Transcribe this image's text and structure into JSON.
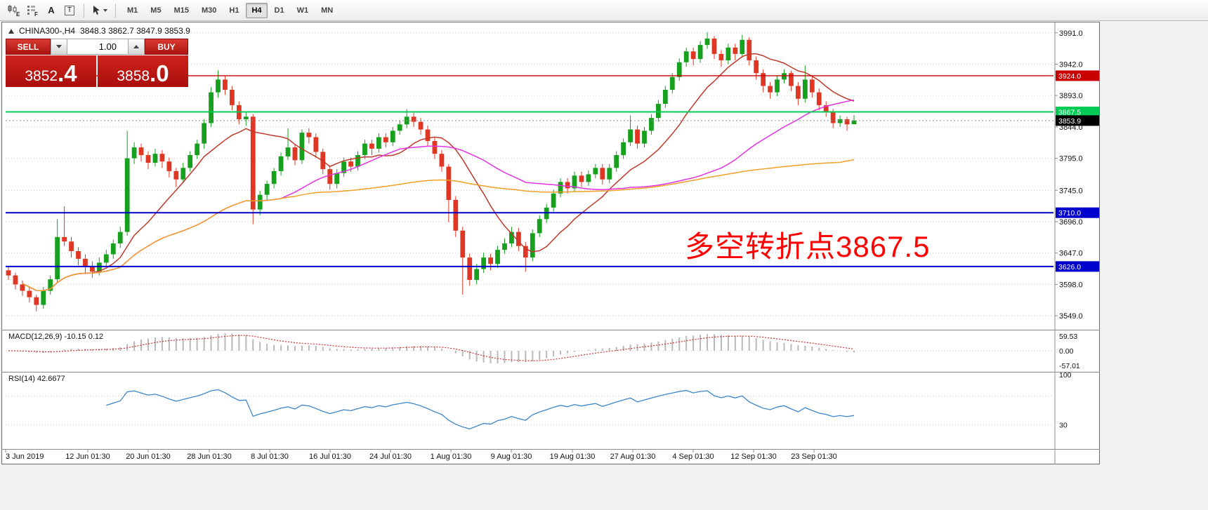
{
  "toolbar": {
    "icon_badges": {
      "charts": "E",
      "list": "F"
    },
    "text_tool_label": "A",
    "textbox_tool_label": "T",
    "timeframes": [
      {
        "label": "M1",
        "active": false
      },
      {
        "label": "M5",
        "active": false
      },
      {
        "label": "M15",
        "active": false
      },
      {
        "label": "M30",
        "active": false
      },
      {
        "label": "H1",
        "active": false
      },
      {
        "label": "H4",
        "active": true
      },
      {
        "label": "D1",
        "active": false
      },
      {
        "label": "W1",
        "active": false
      },
      {
        "label": "MN",
        "active": false
      }
    ]
  },
  "trade": {
    "sell_label": "SELL",
    "buy_label": "BUY",
    "volume": "1.00",
    "sell_price_main": "3852",
    "sell_price_frac": ".4",
    "buy_price_main": "3858",
    "buy_price_frac": ".0"
  },
  "chart": {
    "symbol_period": "CHINA300-,H4",
    "ohlc_values": "3848.3 3862.7 3847.9 3853.9",
    "annotation_text": "多空转折点3867.5",
    "annotation_color": "#ff0000"
  },
  "indicators": {
    "macd": {
      "label": "MACD(12,26,9) -10.15 0.12",
      "fast": 12,
      "slow": 26,
      "signal": 9,
      "histogram_color": "#b9b9b9",
      "signal_color": "#cc3333"
    },
    "rsi": {
      "label": "RSI(14) 42.6677",
      "period": 14,
      "color": "#3c86c8",
      "levels": [
        70,
        30
      ]
    }
  },
  "axes": {
    "y_labels": [
      "3991.0",
      "3942.0",
      "3893.0",
      "3844.0",
      "3795.0",
      "3745.0",
      "3696.0",
      "3647.0",
      "3598.0",
      "3549.0"
    ],
    "x_labels": [
      "3 Jun 2019",
      "12 Jun 01:30",
      "20 Jun 01:30",
      "28 Jun 01:30",
      "8 Jul 01:30",
      "16 Jul 01:30",
      "24 Jul 01:30",
      "1 Aug 01:30",
      "9 Aug 01:30",
      "19 Aug 01:30",
      "27 Aug 01:30",
      "4 Sep 01:30",
      "12 Sep 01:30",
      "23 Sep 01:30"
    ],
    "macd_labels": [
      "59.53",
      "0.00",
      "-57.01"
    ],
    "rsi_labels": [
      {
        "value": 100,
        "label": "100"
      },
      {
        "value": 30,
        "label": "30"
      }
    ]
  },
  "chart_data": {
    "type": "candlestick",
    "symbol": "CHINA300-",
    "timeframe": "H4",
    "title": "CHINA300-,H4 3848.3 3862.7 3847.9 3853.9",
    "price_min": 3536,
    "price_max": 4005,
    "up_color": "#16a01e",
    "down_color": "#e03724",
    "ohlc": [
      [
        3620,
        3626,
        3605,
        3612
      ],
      [
        3612,
        3616,
        3590,
        3598
      ],
      [
        3598,
        3604,
        3580,
        3588
      ],
      [
        3588,
        3594,
        3570,
        3578
      ],
      [
        3578,
        3582,
        3556,
        3566
      ],
      [
        3566,
        3594,
        3560,
        3588
      ],
      [
        3588,
        3612,
        3582,
        3606
      ],
      [
        3606,
        3700,
        3600,
        3672
      ],
      [
        3672,
        3720,
        3658,
        3665
      ],
      [
        3665,
        3672,
        3640,
        3650
      ],
      [
        3650,
        3656,
        3628,
        3638
      ],
      [
        3638,
        3645,
        3614,
        3625
      ],
      [
        3625,
        3634,
        3608,
        3618
      ],
      [
        3618,
        3640,
        3612,
        3632
      ],
      [
        3632,
        3652,
        3626,
        3645
      ],
      [
        3645,
        3668,
        3638,
        3662
      ],
      [
        3662,
        3688,
        3655,
        3680
      ],
      [
        3680,
        3838,
        3674,
        3795
      ],
      [
        3795,
        3820,
        3786,
        3812
      ],
      [
        3812,
        3818,
        3790,
        3800
      ],
      [
        3800,
        3806,
        3778,
        3788
      ],
      [
        3788,
        3810,
        3782,
        3802
      ],
      [
        3802,
        3808,
        3780,
        3790
      ],
      [
        3790,
        3796,
        3765,
        3775
      ],
      [
        3775,
        3780,
        3750,
        3762
      ],
      [
        3762,
        3788,
        3756,
        3780
      ],
      [
        3780,
        3806,
        3774,
        3800
      ],
      [
        3800,
        3824,
        3794,
        3818
      ],
      [
        3818,
        3856,
        3810,
        3850
      ],
      [
        3850,
        3906,
        3844,
        3898
      ],
      [
        3898,
        3932,
        3890,
        3918
      ],
      [
        3918,
        3924,
        3894,
        3902
      ],
      [
        3902,
        3908,
        3870,
        3878
      ],
      [
        3878,
        3884,
        3848,
        3856
      ],
      [
        3856,
        3868,
        3846,
        3860
      ],
      [
        3860,
        3864,
        3692,
        3715
      ],
      [
        3715,
        3744,
        3706,
        3738
      ],
      [
        3738,
        3760,
        3730,
        3755
      ],
      [
        3755,
        3780,
        3748,
        3775
      ],
      [
        3775,
        3804,
        3768,
        3798
      ],
      [
        3798,
        3842,
        3792,
        3812
      ],
      [
        3812,
        3816,
        3784,
        3792
      ],
      [
        3792,
        3840,
        3786,
        3835
      ],
      [
        3835,
        3842,
        3818,
        3828
      ],
      [
        3828,
        3834,
        3796,
        3805
      ],
      [
        3805,
        3810,
        3770,
        3778
      ],
      [
        3778,
        3784,
        3746,
        3755
      ],
      [
        3755,
        3778,
        3748,
        3772
      ],
      [
        3772,
        3796,
        3766,
        3790
      ],
      [
        3790,
        3796,
        3774,
        3782
      ],
      [
        3782,
        3806,
        3776,
        3800
      ],
      [
        3800,
        3824,
        3794,
        3818
      ],
      [
        3818,
        3824,
        3800,
        3810
      ],
      [
        3810,
        3834,
        3804,
        3828
      ],
      [
        3828,
        3834,
        3812,
        3820
      ],
      [
        3820,
        3844,
        3814,
        3838
      ],
      [
        3838,
        3854,
        3832,
        3848
      ],
      [
        3848,
        3872,
        3842,
        3860
      ],
      [
        3860,
        3866,
        3844,
        3852
      ],
      [
        3852,
        3858,
        3832,
        3840
      ],
      [
        3840,
        3846,
        3814,
        3822
      ],
      [
        3822,
        3828,
        3794,
        3802
      ],
      [
        3802,
        3808,
        3774,
        3782
      ],
      [
        3782,
        3786,
        3695,
        3730
      ],
      [
        3730,
        3736,
        3672,
        3682
      ],
      [
        3682,
        3688,
        3582,
        3640
      ],
      [
        3640,
        3646,
        3596,
        3605
      ],
      [
        3605,
        3630,
        3598,
        3622
      ],
      [
        3622,
        3648,
        3616,
        3640
      ],
      [
        3640,
        3646,
        3620,
        3630
      ],
      [
        3630,
        3658,
        3624,
        3652
      ],
      [
        3652,
        3670,
        3646,
        3662
      ],
      [
        3662,
        3688,
        3656,
        3680
      ],
      [
        3680,
        3686,
        3650,
        3658
      ],
      [
        3658,
        3664,
        3618,
        3640
      ],
      [
        3640,
        3684,
        3634,
        3678
      ],
      [
        3678,
        3706,
        3672,
        3700
      ],
      [
        3700,
        3724,
        3694,
        3718
      ],
      [
        3718,
        3746,
        3712,
        3740
      ],
      [
        3740,
        3764,
        3734,
        3758
      ],
      [
        3758,
        3764,
        3740,
        3748
      ],
      [
        3748,
        3774,
        3742,
        3768
      ],
      [
        3768,
        3774,
        3750,
        3758
      ],
      [
        3758,
        3776,
        3752,
        3770
      ],
      [
        3770,
        3786,
        3764,
        3780
      ],
      [
        3780,
        3786,
        3754,
        3762
      ],
      [
        3762,
        3786,
        3756,
        3780
      ],
      [
        3780,
        3806,
        3774,
        3800
      ],
      [
        3800,
        3826,
        3794,
        3820
      ],
      [
        3820,
        3862,
        3814,
        3840
      ],
      [
        3840,
        3846,
        3810,
        3818
      ],
      [
        3818,
        3844,
        3812,
        3838
      ],
      [
        3838,
        3864,
        3832,
        3858
      ],
      [
        3858,
        3886,
        3852,
        3880
      ],
      [
        3880,
        3908,
        3874,
        3902
      ],
      [
        3902,
        3928,
        3896,
        3922
      ],
      [
        3922,
        3951,
        3916,
        3945
      ],
      [
        3945,
        3968,
        3938,
        3962
      ],
      [
        3962,
        3968,
        3940,
        3950
      ],
      [
        3950,
        3978,
        3944,
        3972
      ],
      [
        3972,
        3992,
        3966,
        3982
      ],
      [
        3982,
        3986,
        3950,
        3958
      ],
      [
        3958,
        3964,
        3938,
        3948
      ],
      [
        3948,
        3974,
        3942,
        3968
      ],
      [
        3968,
        3974,
        3948,
        3958
      ],
      [
        3958,
        3988,
        3952,
        3980
      ],
      [
        3980,
        3984,
        3940,
        3948
      ],
      [
        3948,
        3954,
        3918,
        3928
      ],
      [
        3928,
        3934,
        3898,
        3908
      ],
      [
        3908,
        3914,
        3888,
        3898
      ],
      [
        3898,
        3924,
        3892,
        3918
      ],
      [
        3918,
        3934,
        3912,
        3928
      ],
      [
        3928,
        3932,
        3900,
        3908
      ],
      [
        3908,
        3914,
        3878,
        3888
      ],
      [
        3888,
        3940,
        3882,
        3918
      ],
      [
        3918,
        3922,
        3890,
        3898
      ],
      [
        3898,
        3904,
        3870,
        3878
      ],
      [
        3878,
        3884,
        3860,
        3868
      ],
      [
        3868,
        3872,
        3842,
        3850
      ],
      [
        3850,
        3862,
        3844,
        3856
      ],
      [
        3856,
        3860,
        3838,
        3848
      ],
      [
        3848.3,
        3862.7,
        3847.9,
        3853.9
      ]
    ],
    "moving_averages": [
      {
        "period": 12,
        "color": "#c0392b"
      },
      {
        "period": 40,
        "color": "#e332e3"
      },
      {
        "period": 120,
        "color": "#f0a028"
      }
    ],
    "hlines": [
      {
        "price": 3924.0,
        "label": "3924.0",
        "color": "#c80000",
        "style": "solid",
        "width": 1.4
      },
      {
        "price": 3867.5,
        "label": "3867.5",
        "color": "#00cc55",
        "style": "solid",
        "width": 2
      },
      {
        "price": 3853.9,
        "label": "3853.9",
        "color": "#000000",
        "line_color": "#909090",
        "style": "dotted",
        "width": 1
      },
      {
        "price": 3710.0,
        "label": "3710.0",
        "color": "#0000cc",
        "style": "solid",
        "width": 2
      },
      {
        "price": 3626.0,
        "label": "3626.0",
        "color": "#0000cc",
        "style": "solid",
        "width": 2
      }
    ]
  }
}
